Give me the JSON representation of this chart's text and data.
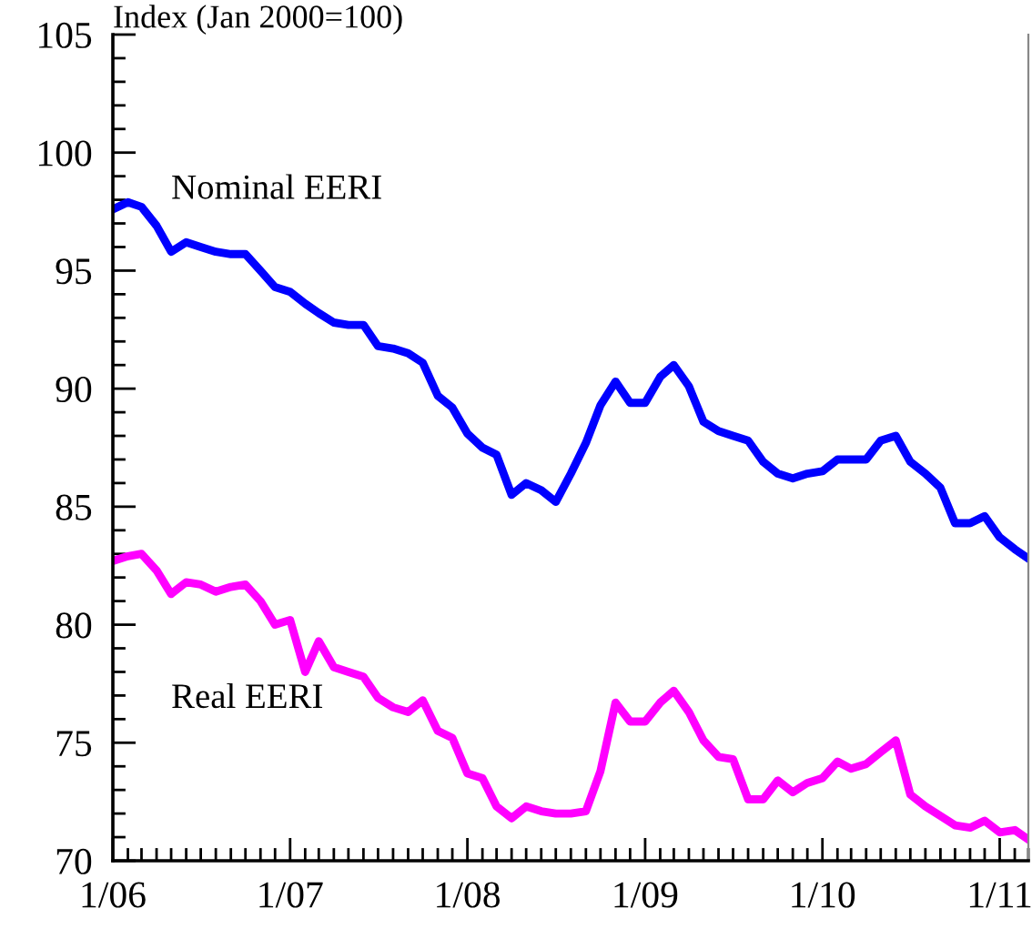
{
  "chart_data": {
    "type": "line",
    "ylabel": "Index (Jan 2000=100)",
    "x": [
      "2006-01",
      "2006-02",
      "2006-03",
      "2006-04",
      "2006-05",
      "2006-06",
      "2006-07",
      "2006-08",
      "2006-09",
      "2006-10",
      "2006-11",
      "2006-12",
      "2007-01",
      "2007-02",
      "2007-03",
      "2007-04",
      "2007-05",
      "2007-06",
      "2007-07",
      "2007-08",
      "2007-09",
      "2007-10",
      "2007-11",
      "2007-12",
      "2008-01",
      "2008-02",
      "2008-03",
      "2008-04",
      "2008-05",
      "2008-06",
      "2008-07",
      "2008-08",
      "2008-09",
      "2008-10",
      "2008-11",
      "2008-12",
      "2009-01",
      "2009-02",
      "2009-03",
      "2009-04",
      "2009-05",
      "2009-06",
      "2009-07",
      "2009-08",
      "2009-09",
      "2009-10",
      "2009-11",
      "2009-12",
      "2010-01",
      "2010-02",
      "2010-03",
      "2010-04",
      "2010-05",
      "2010-06",
      "2010-07",
      "2010-08",
      "2010-09",
      "2010-10",
      "2010-11",
      "2010-12",
      "2011-01",
      "2011-02",
      "2011-03"
    ],
    "series": [
      {
        "name": "Nominal EERI",
        "color": "#0000ff",
        "values": [
          97.6,
          97.9,
          97.7,
          96.9,
          95.8,
          96.2,
          96.0,
          95.8,
          95.7,
          95.7,
          95.0,
          94.3,
          94.1,
          93.6,
          93.2,
          92.8,
          92.7,
          92.7,
          91.8,
          91.7,
          91.5,
          91.1,
          89.7,
          89.2,
          88.1,
          87.5,
          87.2,
          85.5,
          86.0,
          85.7,
          85.2,
          86.4,
          87.7,
          89.3,
          90.3,
          89.4,
          89.4,
          90.5,
          91.0,
          90.1,
          88.6,
          88.2,
          88.0,
          87.8,
          86.9,
          86.4,
          86.2,
          86.4,
          86.5,
          87.0,
          87.0,
          87.0,
          87.8,
          88.0,
          86.9,
          86.4,
          85.8,
          84.3,
          84.3,
          84.6,
          83.7,
          83.2,
          82.8
        ]
      },
      {
        "name": "Real EERI",
        "color": "#ff00ff",
        "values": [
          82.7,
          82.9,
          83.0,
          82.3,
          81.3,
          81.8,
          81.7,
          81.4,
          81.6,
          81.7,
          81.0,
          80.0,
          80.2,
          78.0,
          79.3,
          78.2,
          78.0,
          77.8,
          76.9,
          76.5,
          76.3,
          76.8,
          75.5,
          75.2,
          73.7,
          73.5,
          72.3,
          71.8,
          72.3,
          72.1,
          72.0,
          72.0,
          72.1,
          73.8,
          76.7,
          75.9,
          75.9,
          76.7,
          77.2,
          76.3,
          75.1,
          74.4,
          74.3,
          72.6,
          72.6,
          73.4,
          72.9,
          73.3,
          73.5,
          74.2,
          73.9,
          74.1,
          74.6,
          75.1,
          72.8,
          72.3,
          71.9,
          71.5,
          71.4,
          71.7,
          71.2,
          71.3,
          70.9
        ]
      }
    ],
    "xlim": [
      "2006-01",
      "2011-03"
    ],
    "xticks": [
      {
        "value": "2006-01",
        "label": "1/06"
      },
      {
        "value": "2006-02",
        "label": null
      },
      {
        "value": "2006-03",
        "label": null
      },
      {
        "value": "2006-04",
        "label": null
      },
      {
        "value": "2006-05",
        "label": null
      },
      {
        "value": "2006-06",
        "label": null
      },
      {
        "value": "2006-07",
        "label": null
      },
      {
        "value": "2006-08",
        "label": null
      },
      {
        "value": "2006-09",
        "label": null
      },
      {
        "value": "2006-10",
        "label": null
      },
      {
        "value": "2006-11",
        "label": null
      },
      {
        "value": "2006-12",
        "label": null
      },
      {
        "value": "2007-01",
        "label": "1/07"
      },
      {
        "value": "2007-02",
        "label": null
      },
      {
        "value": "2007-03",
        "label": null
      },
      {
        "value": "2007-04",
        "label": null
      },
      {
        "value": "2007-05",
        "label": null
      },
      {
        "value": "2007-06",
        "label": null
      },
      {
        "value": "2007-07",
        "label": null
      },
      {
        "value": "2007-08",
        "label": null
      },
      {
        "value": "2007-09",
        "label": null
      },
      {
        "value": "2007-10",
        "label": null
      },
      {
        "value": "2007-11",
        "label": null
      },
      {
        "value": "2007-12",
        "label": null
      },
      {
        "value": "2008-01",
        "label": "1/08"
      },
      {
        "value": "2008-02",
        "label": null
      },
      {
        "value": "2008-03",
        "label": null
      },
      {
        "value": "2008-04",
        "label": null
      },
      {
        "value": "2008-05",
        "label": null
      },
      {
        "value": "2008-06",
        "label": null
      },
      {
        "value": "2008-07",
        "label": null
      },
      {
        "value": "2008-08",
        "label": null
      },
      {
        "value": "2008-09",
        "label": null
      },
      {
        "value": "2008-10",
        "label": null
      },
      {
        "value": "2008-11",
        "label": null
      },
      {
        "value": "2008-12",
        "label": null
      },
      {
        "value": "2009-01",
        "label": "1/09"
      },
      {
        "value": "2009-02",
        "label": null
      },
      {
        "value": "2009-03",
        "label": null
      },
      {
        "value": "2009-04",
        "label": null
      },
      {
        "value": "2009-05",
        "label": null
      },
      {
        "value": "2009-06",
        "label": null
      },
      {
        "value": "2009-07",
        "label": null
      },
      {
        "value": "2009-08",
        "label": null
      },
      {
        "value": "2009-09",
        "label": null
      },
      {
        "value": "2009-10",
        "label": null
      },
      {
        "value": "2009-11",
        "label": null
      },
      {
        "value": "2009-12",
        "label": null
      },
      {
        "value": "2010-01",
        "label": "1/10"
      },
      {
        "value": "2010-02",
        "label": null
      },
      {
        "value": "2010-03",
        "label": null
      },
      {
        "value": "2010-04",
        "label": null
      },
      {
        "value": "2010-05",
        "label": null
      },
      {
        "value": "2010-06",
        "label": null
      },
      {
        "value": "2010-07",
        "label": null
      },
      {
        "value": "2010-08",
        "label": null
      },
      {
        "value": "2010-09",
        "label": null
      },
      {
        "value": "2010-10",
        "label": null
      },
      {
        "value": "2010-11",
        "label": null
      },
      {
        "value": "2010-12",
        "label": null
      },
      {
        "value": "2011-01",
        "label": "1/11"
      },
      {
        "value": "2011-02",
        "label": null
      },
      {
        "value": "2011-03",
        "label": null
      }
    ],
    "ylim": [
      70,
      105
    ],
    "yticks": [
      70,
      {
        "value": 71,
        "label": null
      },
      {
        "value": 72,
        "label": null
      },
      {
        "value": 73,
        "label": null
      },
      {
        "value": 74,
        "label": null
      },
      75,
      {
        "value": 76,
        "label": null
      },
      {
        "value": 77,
        "label": null
      },
      {
        "value": 78,
        "label": null
      },
      {
        "value": 79,
        "label": null
      },
      80,
      {
        "value": 81,
        "label": null
      },
      {
        "value": 82,
        "label": null
      },
      {
        "value": 83,
        "label": null
      },
      {
        "value": 84,
        "label": null
      },
      85,
      {
        "value": 86,
        "label": null
      },
      {
        "value": 87,
        "label": null
      },
      {
        "value": 88,
        "label": null
      },
      {
        "value": 89,
        "label": null
      },
      90,
      {
        "value": 91,
        "label": null
      },
      {
        "value": 92,
        "label": null
      },
      {
        "value": 93,
        "label": null
      },
      {
        "value": 94,
        "label": null
      },
      95,
      {
        "value": 96,
        "label": null
      },
      {
        "value": 97,
        "label": null
      },
      {
        "value": 98,
        "label": null
      },
      {
        "value": 99,
        "label": null
      },
      100,
      {
        "value": 101,
        "label": null
      },
      {
        "value": 102,
        "label": null
      },
      {
        "value": 103,
        "label": null
      },
      {
        "value": 104,
        "label": null
      },
      105
    ],
    "grid": false,
    "legend": false,
    "marker": "none",
    "line_style": "solid"
  }
}
